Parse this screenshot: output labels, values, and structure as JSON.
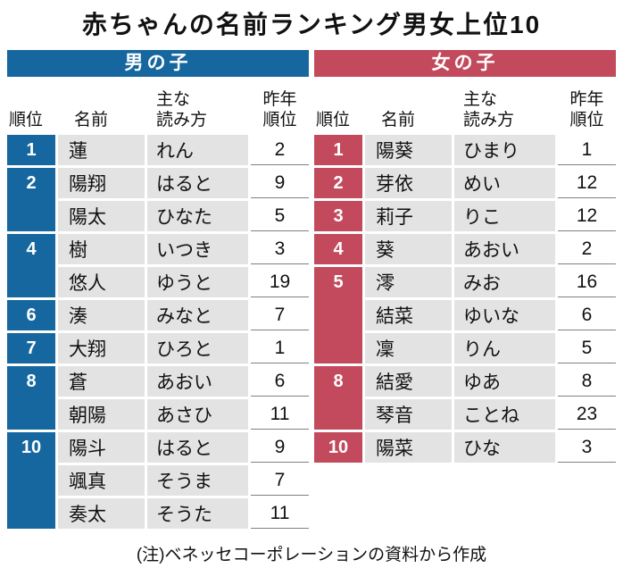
{
  "title": "赤ちゃんの名前ランキング男女上位10",
  "note": "(注)ベネッセコーポレーションの資料から作成",
  "columns": {
    "rank": "順位",
    "name": "名前",
    "reading_line1": "主な",
    "reading_line2": "読み方",
    "lastyear_line1": "昨年",
    "lastyear_line2": "順位"
  },
  "boys": {
    "header": "男の子",
    "accent_color": "#16679f",
    "groups": [
      {
        "rank": "1",
        "entries": [
          {
            "name": "蓮",
            "reading": "れん",
            "last_year": "2"
          }
        ]
      },
      {
        "rank": "2",
        "entries": [
          {
            "name": "陽翔",
            "reading": "はると",
            "last_year": "9"
          },
          {
            "name": "陽太",
            "reading": "ひなた",
            "last_year": "5"
          }
        ]
      },
      {
        "rank": "4",
        "entries": [
          {
            "name": "樹",
            "reading": "いつき",
            "last_year": "3"
          },
          {
            "name": "悠人",
            "reading": "ゆうと",
            "last_year": "19"
          }
        ]
      },
      {
        "rank": "6",
        "entries": [
          {
            "name": "湊",
            "reading": "みなと",
            "last_year": "7"
          }
        ]
      },
      {
        "rank": "7",
        "entries": [
          {
            "name": "大翔",
            "reading": "ひろと",
            "last_year": "1"
          }
        ]
      },
      {
        "rank": "8",
        "entries": [
          {
            "name": "蒼",
            "reading": "あおい",
            "last_year": "6"
          },
          {
            "name": "朝陽",
            "reading": "あさひ",
            "last_year": "11"
          }
        ]
      },
      {
        "rank": "10",
        "entries": [
          {
            "name": "陽斗",
            "reading": "はると",
            "last_year": "9"
          },
          {
            "name": "颯真",
            "reading": "そうま",
            "last_year": "7"
          },
          {
            "name": "奏太",
            "reading": "そうた",
            "last_year": "11"
          }
        ]
      }
    ]
  },
  "girls": {
    "header": "女の子",
    "accent_color": "#c24a5c",
    "groups": [
      {
        "rank": "1",
        "entries": [
          {
            "name": "陽葵",
            "reading": "ひまり",
            "last_year": "1"
          }
        ]
      },
      {
        "rank": "2",
        "entries": [
          {
            "name": "芽依",
            "reading": "めい",
            "last_year": "12"
          }
        ]
      },
      {
        "rank": "3",
        "entries": [
          {
            "name": "莉子",
            "reading": "りこ",
            "last_year": "12"
          }
        ]
      },
      {
        "rank": "4",
        "entries": [
          {
            "name": "葵",
            "reading": "あおい",
            "last_year": "2"
          }
        ]
      },
      {
        "rank": "5",
        "entries": [
          {
            "name": "澪",
            "reading": "みお",
            "last_year": "16"
          },
          {
            "name": "結菜",
            "reading": "ゆいな",
            "last_year": "6"
          },
          {
            "name": "凜",
            "reading": "りん",
            "last_year": "5"
          }
        ]
      },
      {
        "rank": "8",
        "entries": [
          {
            "name": "結愛",
            "reading": "ゆあ",
            "last_year": "8"
          },
          {
            "name": "琴音",
            "reading": "ことね",
            "last_year": "23"
          }
        ]
      },
      {
        "rank": "10",
        "entries": [
          {
            "name": "陽菜",
            "reading": "ひな",
            "last_year": "3"
          }
        ]
      }
    ]
  },
  "chart_data": [
    {
      "type": "table",
      "title": "男の子",
      "columns": [
        "順位",
        "名前",
        "主な読み方",
        "昨年順位"
      ],
      "rows": [
        [
          "1",
          "蓮",
          "れん",
          "2"
        ],
        [
          "2",
          "陽翔",
          "はると",
          "9"
        ],
        [
          "2",
          "陽太",
          "ひなた",
          "5"
        ],
        [
          "4",
          "樹",
          "いつき",
          "3"
        ],
        [
          "4",
          "悠人",
          "ゆうと",
          "19"
        ],
        [
          "6",
          "湊",
          "みなと",
          "7"
        ],
        [
          "7",
          "大翔",
          "ひろと",
          "1"
        ],
        [
          "8",
          "蒼",
          "あおい",
          "6"
        ],
        [
          "8",
          "朝陽",
          "あさひ",
          "11"
        ],
        [
          "10",
          "陽斗",
          "はると",
          "9"
        ],
        [
          "10",
          "颯真",
          "そうま",
          "7"
        ],
        [
          "10",
          "奏太",
          "そうた",
          "11"
        ]
      ]
    },
    {
      "type": "table",
      "title": "女の子",
      "columns": [
        "順位",
        "名前",
        "主な読み方",
        "昨年順位"
      ],
      "rows": [
        [
          "1",
          "陽葵",
          "ひまり",
          "1"
        ],
        [
          "2",
          "芽依",
          "めい",
          "12"
        ],
        [
          "3",
          "莉子",
          "りこ",
          "12"
        ],
        [
          "4",
          "葵",
          "あおい",
          "2"
        ],
        [
          "5",
          "澪",
          "みお",
          "16"
        ],
        [
          "5",
          "結菜",
          "ゆいな",
          "6"
        ],
        [
          "5",
          "凜",
          "りん",
          "5"
        ],
        [
          "8",
          "結愛",
          "ゆあ",
          "8"
        ],
        [
          "8",
          "琴音",
          "ことね",
          "23"
        ],
        [
          "10",
          "陽菜",
          "ひな",
          "3"
        ]
      ]
    }
  ]
}
